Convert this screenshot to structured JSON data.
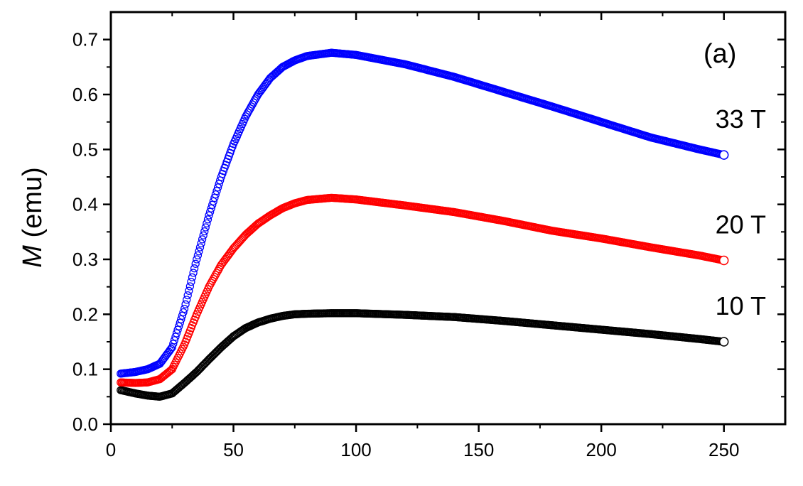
{
  "chart_data": {
    "type": "scatter",
    "title": "",
    "panel_label": "(a)",
    "ylabel_italic": "M",
    "ylabel_rest": " (emu)",
    "xlabel": "",
    "xlim": [
      0,
      275
    ],
    "ylim": [
      0.0,
      0.75
    ],
    "xticks": [
      0,
      50,
      100,
      150,
      200,
      250
    ],
    "yticks": [
      0.0,
      0.1,
      0.2,
      0.3,
      0.4,
      0.5,
      0.6,
      0.7
    ],
    "x_minor_step": 25,
    "y_minor_step": 0.05,
    "grid": false,
    "legend": "none",
    "series": [
      {
        "name": "10 T",
        "color": "#000000",
        "points": [
          [
            4,
            0.062
          ],
          [
            10,
            0.056
          ],
          [
            15,
            0.052
          ],
          [
            20,
            0.05
          ],
          [
            25,
            0.056
          ],
          [
            30,
            0.075
          ],
          [
            35,
            0.095
          ],
          [
            40,
            0.118
          ],
          [
            45,
            0.14
          ],
          [
            50,
            0.16
          ],
          [
            55,
            0.175
          ],
          [
            60,
            0.185
          ],
          [
            65,
            0.192
          ],
          [
            70,
            0.197
          ],
          [
            75,
            0.2
          ],
          [
            80,
            0.201
          ],
          [
            90,
            0.202
          ],
          [
            100,
            0.202
          ],
          [
            120,
            0.199
          ],
          [
            140,
            0.195
          ],
          [
            160,
            0.188
          ],
          [
            180,
            0.18
          ],
          [
            200,
            0.172
          ],
          [
            220,
            0.164
          ],
          [
            240,
            0.155
          ],
          [
            250,
            0.15
          ]
        ]
      },
      {
        "name": "20 T",
        "color": "#ff0000",
        "points": [
          [
            4,
            0.076
          ],
          [
            10,
            0.075
          ],
          [
            15,
            0.076
          ],
          [
            20,
            0.082
          ],
          [
            25,
            0.1
          ],
          [
            30,
            0.145
          ],
          [
            35,
            0.2
          ],
          [
            40,
            0.25
          ],
          [
            45,
            0.29
          ],
          [
            50,
            0.32
          ],
          [
            55,
            0.345
          ],
          [
            60,
            0.365
          ],
          [
            65,
            0.38
          ],
          [
            70,
            0.393
          ],
          [
            75,
            0.402
          ],
          [
            80,
            0.408
          ],
          [
            90,
            0.412
          ],
          [
            100,
            0.409
          ],
          [
            120,
            0.398
          ],
          [
            140,
            0.386
          ],
          [
            160,
            0.37
          ],
          [
            180,
            0.352
          ],
          [
            200,
            0.338
          ],
          [
            220,
            0.322
          ],
          [
            240,
            0.307
          ],
          [
            250,
            0.298
          ]
        ]
      },
      {
        "name": "33 T",
        "color": "#0000ff",
        "points": [
          [
            4,
            0.092
          ],
          [
            10,
            0.095
          ],
          [
            15,
            0.1
          ],
          [
            20,
            0.11
          ],
          [
            25,
            0.14
          ],
          [
            30,
            0.21
          ],
          [
            35,
            0.3
          ],
          [
            40,
            0.38
          ],
          [
            45,
            0.45
          ],
          [
            50,
            0.51
          ],
          [
            55,
            0.56
          ],
          [
            60,
            0.6
          ],
          [
            65,
            0.63
          ],
          [
            70,
            0.65
          ],
          [
            75,
            0.662
          ],
          [
            80,
            0.67
          ],
          [
            90,
            0.676
          ],
          [
            100,
            0.672
          ],
          [
            120,
            0.655
          ],
          [
            140,
            0.632
          ],
          [
            160,
            0.605
          ],
          [
            180,
            0.578
          ],
          [
            200,
            0.55
          ],
          [
            220,
            0.522
          ],
          [
            240,
            0.5
          ],
          [
            250,
            0.49
          ]
        ]
      }
    ]
  }
}
